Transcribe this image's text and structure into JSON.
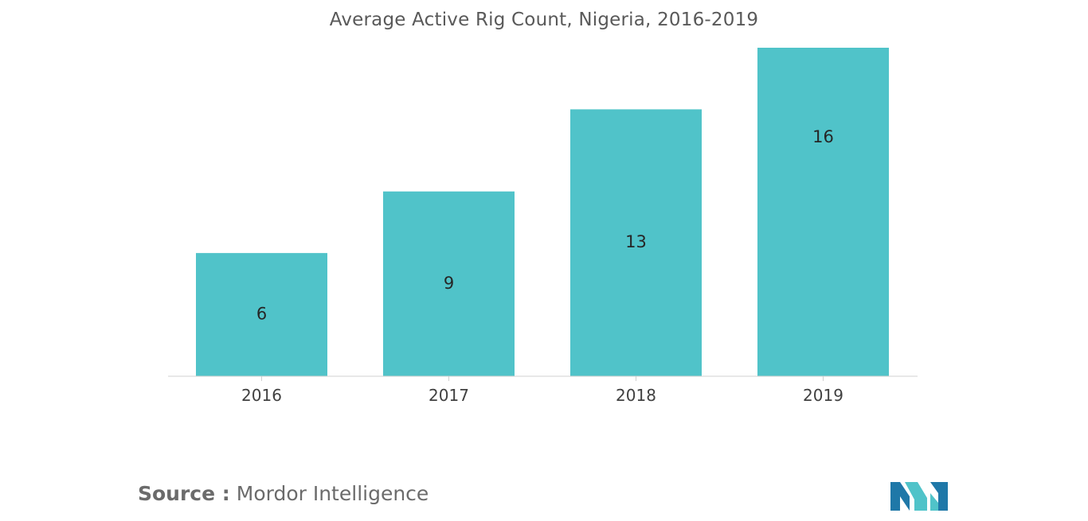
{
  "chart_data": {
    "type": "bar",
    "title": "Average Active Rig Count, Nigeria, 2016-2019",
    "categories": [
      "2016",
      "2017",
      "2018",
      "2019"
    ],
    "values": [
      6,
      9,
      13,
      16
    ],
    "data_labels": [
      "6",
      "9",
      "13",
      "16"
    ],
    "xlabel": "",
    "ylabel": "",
    "ylim": [
      0,
      16
    ],
    "grid": false,
    "legend": "none",
    "bar_color": "#50C3C9"
  },
  "source": {
    "label": "Source :",
    "value": "Mordor Intelligence"
  },
  "logo": {
    "icon": "mordor-intelligence-logo-icon",
    "colors": [
      "#1F78A8",
      "#50C3C9"
    ]
  }
}
